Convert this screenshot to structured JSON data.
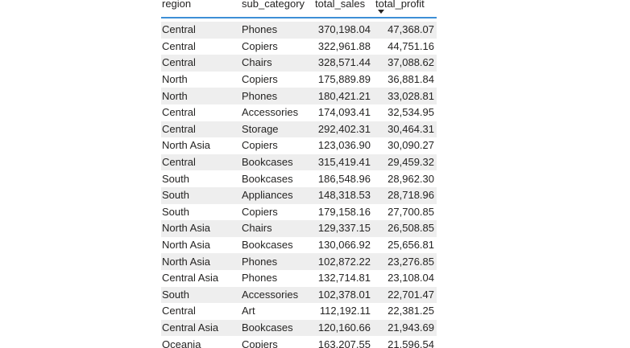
{
  "table": {
    "columns": [
      {
        "key": "region",
        "label": "region",
        "sorted": false
      },
      {
        "key": "sub_category",
        "label": "sub_category",
        "sorted": false
      },
      {
        "key": "total_sales",
        "label": "total_sales",
        "sorted": false
      },
      {
        "key": "total_profit",
        "label": "total_profit",
        "sorted": true,
        "sort_direction": "descending"
      }
    ],
    "rows": [
      [
        "Central",
        "Phones",
        "370,198.04",
        "47,368.07"
      ],
      [
        "Central",
        "Copiers",
        "322,961.88",
        "44,751.16"
      ],
      [
        "Central",
        "Chairs",
        "328,571.44",
        "37,088.62"
      ],
      [
        "North",
        "Copiers",
        "175,889.89",
        "36,881.84"
      ],
      [
        "North",
        "Phones",
        "180,421.21",
        "33,028.81"
      ],
      [
        "Central",
        "Accessories",
        "174,093.41",
        "32,534.95"
      ],
      [
        "Central",
        "Storage",
        "292,402.31",
        "30,464.31"
      ],
      [
        "North Asia",
        "Copiers",
        "123,036.90",
        "30,090.27"
      ],
      [
        "Central",
        "Bookcases",
        "315,419.41",
        "29,459.32"
      ],
      [
        "South",
        "Bookcases",
        "186,548.96",
        "28,962.30"
      ],
      [
        "South",
        "Appliances",
        "148,318.53",
        "28,718.96"
      ],
      [
        "South",
        "Copiers",
        "179,158.16",
        "27,700.85"
      ],
      [
        "North Asia",
        "Chairs",
        "129,337.15",
        "26,508.85"
      ],
      [
        "North Asia",
        "Bookcases",
        "130,066.92",
        "25,656.81"
      ],
      [
        "North Asia",
        "Phones",
        "102,872.22",
        "23,276.85"
      ],
      [
        "Central Asia",
        "Phones",
        "132,714.81",
        "23,108.04"
      ],
      [
        "South",
        "Accessories",
        "102,378.01",
        "22,701.47"
      ],
      [
        "Central",
        "Art",
        "112,192.11",
        "22,381.25"
      ],
      [
        "Central Asia",
        "Bookcases",
        "120,160.66",
        "21,943.69"
      ],
      [
        "Oceania",
        "Copiers",
        "163,207.55",
        "21,596.54"
      ]
    ]
  },
  "colors": {
    "header_underline": "#3d8fd6",
    "stripe": "#eeeeee",
    "text": "#252423"
  },
  "icons": {
    "sort": "sort-descending-icon"
  }
}
